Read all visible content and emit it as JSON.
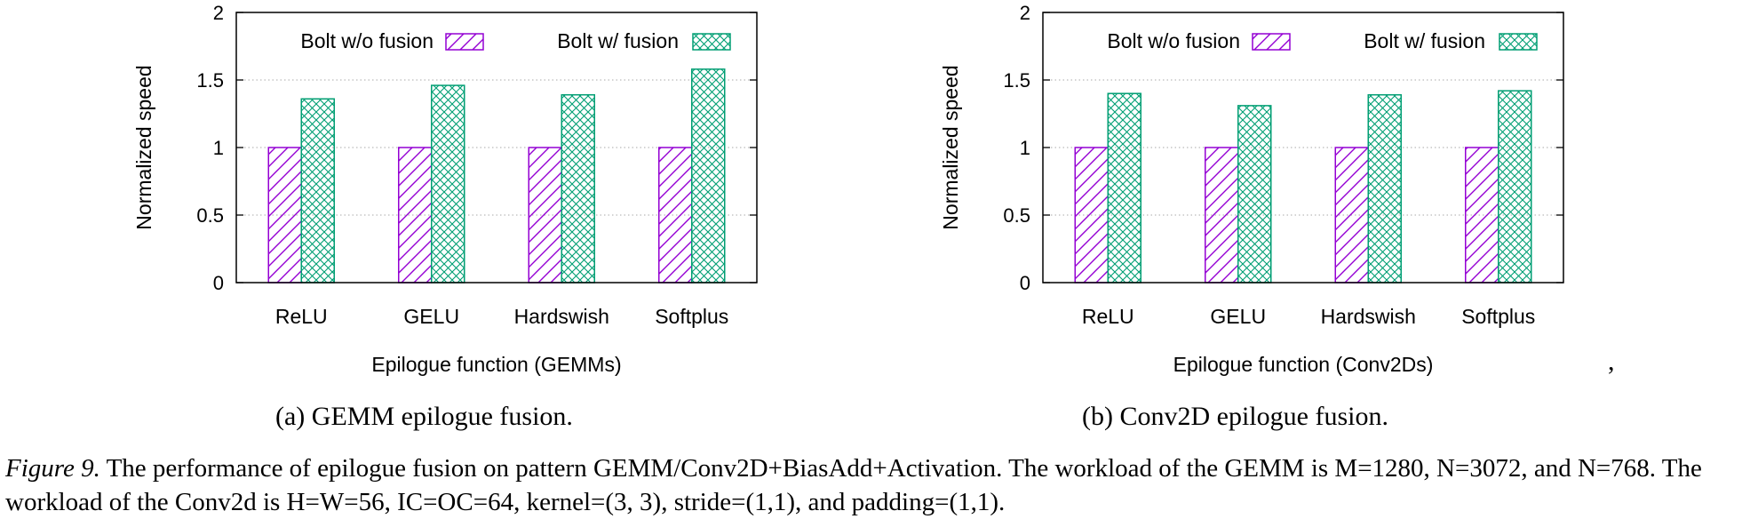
{
  "chart_data": [
    {
      "type": "bar",
      "categories": [
        "ReLU",
        "GELU",
        "Hardswish",
        "Softplus"
      ],
      "series": [
        {
          "name": "Bolt w/o fusion",
          "values": [
            1.0,
            1.0,
            1.0,
            1.0
          ],
          "color": "#9400d3",
          "pattern": "diagonal-hatch"
        },
        {
          "name": "Bolt w/ fusion",
          "values": [
            1.36,
            1.46,
            1.39,
            1.58
          ],
          "color": "#009e73",
          "pattern": "cross-hatch"
        }
      ],
      "xlabel": "Epilogue function (GEMMs)",
      "ylabel": "Normalized speed",
      "ylim": [
        0,
        2
      ],
      "yticks": [
        "0",
        "0.5",
        "1",
        "1.5",
        "2"
      ],
      "grid": "horizontal dotted",
      "legend": "top"
    },
    {
      "type": "bar",
      "categories": [
        "ReLU",
        "GELU",
        "Hardswish",
        "Softplus"
      ],
      "series": [
        {
          "name": "Bolt w/o fusion",
          "values": [
            1.0,
            1.0,
            1.0,
            1.0
          ],
          "color": "#9400d3",
          "pattern": "diagonal-hatch"
        },
        {
          "name": "Bolt w/ fusion",
          "values": [
            1.4,
            1.31,
            1.39,
            1.42
          ],
          "color": "#009e73",
          "pattern": "cross-hatch"
        }
      ],
      "xlabel": "Epilogue function (Conv2Ds)",
      "ylabel": "Normalized speed",
      "ylim": [
        0,
        2
      ],
      "yticks": [
        "0",
        "0.5",
        "1",
        "1.5",
        "2"
      ],
      "grid": "horizontal dotted",
      "legend": "top"
    }
  ],
  "subcaptions": {
    "a": "(a) GEMM epilogue fusion.",
    "b": "(b) Conv2D epilogue fusion."
  },
  "stray_mark": ",",
  "caption": {
    "label": "Figure 9.",
    "text": " The performance of epilogue fusion on pattern GEMM/Conv2D+BiasAdd+Activation. The workload of the GEMM is M=1280, N=3072, and N=768. The workload of the Conv2d is H=W=56, IC=OC=64, kernel=(3, 3), stride=(1,1), and padding=(1,1)."
  }
}
